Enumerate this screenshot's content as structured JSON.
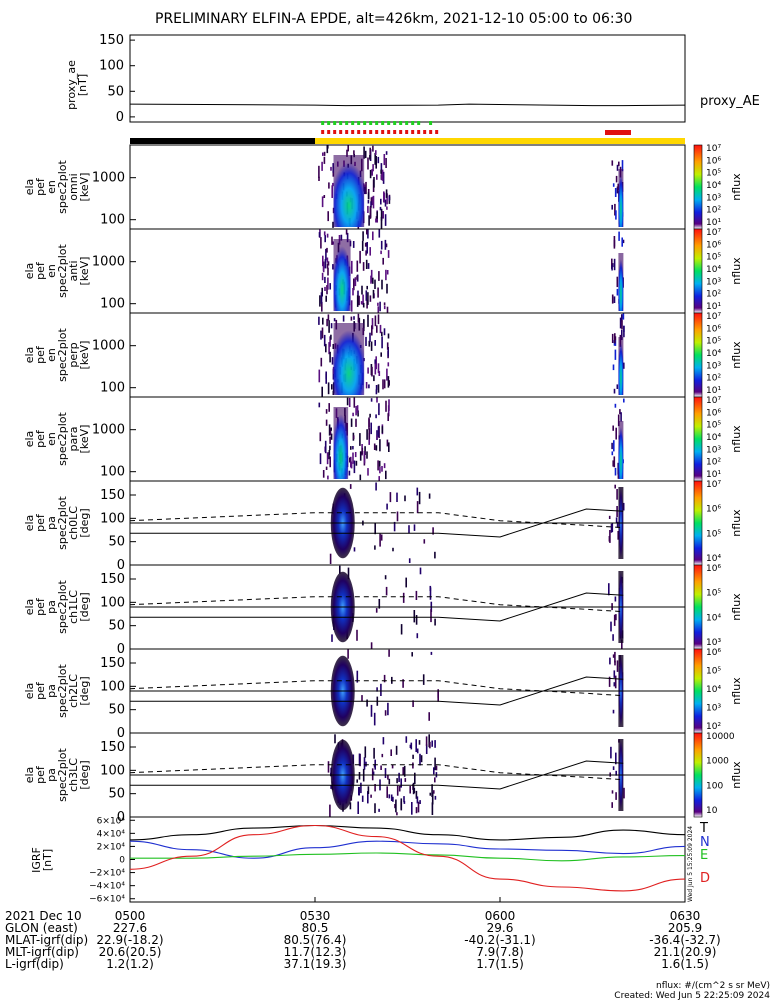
{
  "title": "PRELIMINARY ELFIN-A EPDE, alt=426km, 2021-12-10 05:00 to 06:30",
  "proxy_panel": {
    "ylabel": [
      "proxy_ae",
      "[nT]"
    ],
    "yticks": [
      "150",
      "100",
      "50",
      "0"
    ],
    "legend": "proxy_AE"
  },
  "energy_panels": [
    {
      "ylabel": [
        "ela",
        "pef",
        "en",
        "spec2plot",
        "omni",
        "[keV]"
      ],
      "yticks": [
        "1000",
        "100"
      ],
      "cb_label": "nflux",
      "cb_ticks": [
        "10⁷",
        "10⁶",
        "10⁵",
        "10⁴",
        "10³",
        "10²",
        "10¹"
      ]
    },
    {
      "ylabel": [
        "ela",
        "pef",
        "en",
        "spec2plot",
        "anti",
        "[keV]"
      ],
      "yticks": [
        "1000",
        "100"
      ],
      "cb_label": "nflux",
      "cb_ticks": [
        "10⁷",
        "10⁶",
        "10⁵",
        "10⁴",
        "10³",
        "10²",
        "10¹"
      ]
    },
    {
      "ylabel": [
        "ela",
        "pef",
        "en",
        "spec2plot",
        "perp",
        "[keV]"
      ],
      "yticks": [
        "1000",
        "100"
      ],
      "cb_label": "nflux",
      "cb_ticks": [
        "10⁷",
        "10⁶",
        "10⁵",
        "10⁴",
        "10³",
        "10²",
        "10¹"
      ]
    },
    {
      "ylabel": [
        "ela",
        "pef",
        "en",
        "spec2plot",
        "para",
        "[keV]"
      ],
      "yticks": [
        "1000",
        "100"
      ],
      "cb_label": "nflux",
      "cb_ticks": [
        "10⁷",
        "10⁶",
        "10⁵",
        "10⁴",
        "10³",
        "10²",
        "10¹"
      ]
    }
  ],
  "pitch_panels": [
    {
      "ylabel": [
        "ela",
        "pef",
        "pa",
        "spec2plot",
        "ch0LC",
        "[deg]"
      ],
      "yticks": [
        "150",
        "100",
        "50",
        "0"
      ],
      "cb_label": "nflux",
      "cb_ticks": [
        "10⁷",
        "10⁶",
        "10⁵",
        "10⁴"
      ]
    },
    {
      "ylabel": [
        "ela",
        "pef",
        "pa",
        "spec2plot",
        "ch1LC",
        "[deg]"
      ],
      "yticks": [
        "150",
        "100",
        "50",
        "0"
      ],
      "cb_label": "nflux",
      "cb_ticks": [
        "10⁶",
        "10⁵",
        "10⁴",
        "10³"
      ]
    },
    {
      "ylabel": [
        "ela",
        "pef",
        "pa",
        "spec2plot",
        "ch2LC",
        "[deg]"
      ],
      "yticks": [
        "150",
        "100",
        "50",
        "0"
      ],
      "cb_label": "nflux",
      "cb_ticks": [
        "10⁶",
        "10⁵",
        "10⁴",
        "10³",
        "10²"
      ]
    },
    {
      "ylabel": [
        "ela",
        "pef",
        "pa",
        "spec2plot",
        "ch3LC",
        "[deg]"
      ],
      "yticks": [
        "150",
        "100",
        "50",
        "0"
      ],
      "cb_label": "nflux",
      "cb_ticks": [
        "10000",
        "1000",
        "100",
        "10"
      ]
    }
  ],
  "igrf_panel": {
    "ylabel": [
      "IGRF",
      "[nT]"
    ],
    "yticks": [
      "6×10⁴",
      "4×10⁴",
      "2×10⁴",
      "0",
      "−2×10⁴",
      "−4×10⁴",
      "−6×10⁴"
    ],
    "legend": [
      {
        "label": "T",
        "color": "#000000"
      },
      {
        "label": "N",
        "color": "#2030d0"
      },
      {
        "label": "E",
        "color": "#20c020"
      },
      {
        "label": "D",
        "color": "#e02020"
      }
    ],
    "stamp": "Wed Jun  5 15:25:09 2024"
  },
  "footer": {
    "row_labels": [
      "2021 Dec 10",
      "GLON (east)",
      "MLAT-igrf(dip)",
      "MLT-igrf(dip)",
      "L-igrf(dip)"
    ],
    "columns": [
      {
        "time": "0500",
        "values": [
          "227.6",
          "22.9(-18.2)",
          "20.6(20.5)",
          "1.2(1.2)"
        ]
      },
      {
        "time": "0530",
        "values": [
          "80.5",
          "80.5(76.4)",
          "11.7(12.3)",
          "37.1(19.3)"
        ]
      },
      {
        "time": "0600",
        "values": [
          "29.6",
          "-40.2(-31.1)",
          "7.9(7.8)",
          "1.7(1.5)"
        ]
      },
      {
        "time": "0630",
        "values": [
          "205.9",
          "-36.4(-32.7)",
          "21.1(20.9)",
          "1.6(1.5)"
        ]
      }
    ],
    "units_note": "nflux: #/(cm^2 s sr MeV)",
    "created": "Created: Wed Jun  5 22:25:09 2024"
  },
  "chart_data": {
    "type": "heatmap",
    "x_ticks": [
      "0500",
      "0530",
      "0600",
      "0630"
    ],
    "xlim": [
      "05:00",
      "06:30"
    ],
    "proxy_ae": {
      "name": "proxy_AE",
      "x_min": [
        0,
        30,
        35,
        50,
        55,
        75,
        80,
        90
      ],
      "y_nT": [
        25,
        23,
        22,
        23,
        25,
        22,
        22,
        23
      ],
      "ylim": [
        -10,
        160
      ]
    },
    "energy_ylim_keV": [
      60,
      6000
    ],
    "pitch_ylim_deg": [
      0,
      180
    ],
    "science_zones_min": [
      [
        30.5,
        36
      ],
      [
        78,
        80
      ]
    ],
    "loss_cone_solid_deg": {
      "x_min": [
        30,
        50,
        60,
        74,
        80
      ],
      "y": [
        68,
        68,
        60,
        120,
        115
      ]
    },
    "loss_cone_dashed_deg": {
      "x_min": [
        0,
        30,
        50,
        60,
        74,
        80
      ],
      "y": [
        95,
        112,
        112,
        95,
        85,
        80
      ]
    },
    "reference_line_deg": 90,
    "igrf_nT": {
      "x_min": [
        0,
        10,
        20,
        30,
        40,
        50,
        60,
        70,
        80,
        90
      ],
      "T": [
        30000,
        38000,
        48000,
        52000,
        48000,
        38000,
        30000,
        34000,
        45000,
        38000
      ],
      "N": [
        28000,
        15000,
        2000,
        18000,
        28000,
        24000,
        16000,
        14000,
        9000,
        20000
      ],
      "E": [
        2000,
        2000,
        5000,
        8000,
        10000,
        7000,
        2000,
        -2000,
        4000,
        6000
      ],
      "D": [
        -15000,
        5000,
        38000,
        52000,
        35000,
        5000,
        -30000,
        -42000,
        -48000,
        -30000
      ],
      "ylim": [
        -65000,
        65000
      ]
    }
  }
}
